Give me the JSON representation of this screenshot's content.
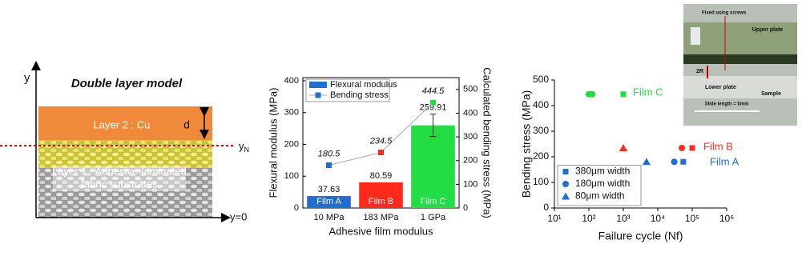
{
  "diagram": {
    "axis_y": "y",
    "title": "Double layer model",
    "layer2": "Layer 2 : Cu",
    "d": "d",
    "neutral_axis": {
      "base": "y",
      "sub": "N"
    },
    "layer1": [
      "Layer 1 : Adhesive-laminated",
      "fabric substrates"
    ],
    "origin": "y=0"
  },
  "chart_data": [
    {
      "type": "bar",
      "categories": [
        "10 MPa",
        "183 MPa",
        "1 GPa"
      ],
      "x_label": "Adhesive film modulus",
      "y_label": "Flexural modulus (MPa)",
      "y2_label": "Calculated bending stress (MPa)",
      "ylim": [
        0,
        410
      ],
      "yticks": [
        0,
        100,
        200,
        300,
        400
      ],
      "y2lim": [
        0,
        550
      ],
      "y2ticks": [
        0,
        100,
        200,
        300,
        400,
        500
      ],
      "legend": "upper left",
      "series": [
        {
          "name": "Flexural modulus",
          "type": "bar",
          "color": "#1f6fd0",
          "colors": [
            "#1f6fd0",
            "#ff2a1a",
            "#22dd44"
          ],
          "values": [
            37.63,
            80.59,
            259.91
          ],
          "errors": [
            null,
            null,
            35
          ],
          "bar_labels": [
            "Film A",
            "Film B",
            "Film C"
          ]
        },
        {
          "name": "Bending stress",
          "type": "line",
          "axis": "y2",
          "color": "#1f6fd0",
          "line_color": "#aaaaaa",
          "colors": [
            "#1f6fd0",
            "#ff2a1a",
            "#22dd44"
          ],
          "values": [
            180.5,
            234.5,
            444.5
          ]
        }
      ]
    },
    {
      "type": "scatter",
      "x_label": "Failure cycle (Nf)",
      "y_label": "Bending stress (MPa)",
      "log_x": true,
      "xlim": [
        10,
        1000000
      ],
      "xticks": [
        {
          "value": 10,
          "label": "10¹"
        },
        {
          "value": 100,
          "label": "10²"
        },
        {
          "value": 1000,
          "label": "10³"
        },
        {
          "value": 10000,
          "label": "10⁴"
        },
        {
          "value": 100000,
          "label": "10⁵"
        },
        {
          "value": 1000000,
          "label": "10⁶"
        }
      ],
      "ylim": [
        0,
        500
      ],
      "yticks": [
        0,
        100,
        200,
        300,
        400,
        500
      ],
      "legend": "lower left",
      "series": [
        {
          "name": "380μm width",
          "marker": "square",
          "color": "#1f6fd0",
          "x": [
            1000,
            100000,
            55000
          ],
          "values": [
            444.5,
            234.5,
            180.5
          ],
          "colors": [
            "#22dd44",
            "#ff2a1a",
            "#1f6fd0"
          ]
        },
        {
          "name": "180μm width",
          "marker": "circle",
          "color": "#1f6fd0",
          "x": [
            100,
            125,
            50000,
            30000
          ],
          "values": [
            444.5,
            444.5,
            234.5,
            180.5
          ],
          "colors": [
            "#22dd44",
            "#22dd44",
            "#ff2a1a",
            "#1f6fd0"
          ]
        },
        {
          "name": "80μm width",
          "marker": "triangle",
          "color": "#1f6fd0",
          "x": [
            1000,
            4700
          ],
          "values": [
            234.5,
            180.5
          ],
          "colors": [
            "#ff2a1a",
            "#1f6fd0"
          ]
        }
      ],
      "annotations": [
        {
          "text": "Film C",
          "color": "#22dd44"
        },
        {
          "text": "Film B",
          "color": "#ff2a1a"
        },
        {
          "text": "Film A",
          "color": "#1f6fd0"
        }
      ]
    }
  ],
  "photo": {
    "labels": [
      "Fixed using screws",
      "Upper plate",
      "2R",
      "Lower plate",
      "Sample",
      "Slide length = 5mm"
    ]
  }
}
